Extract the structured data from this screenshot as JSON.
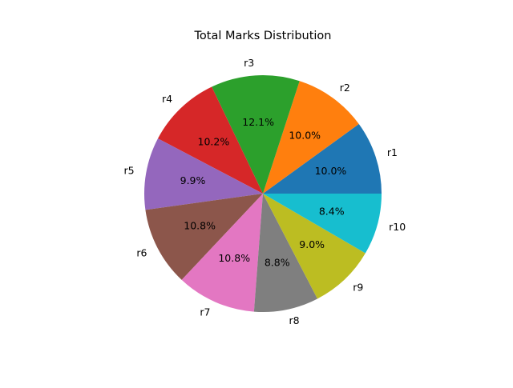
{
  "chart_data": {
    "type": "pie",
    "title": "Total Marks Distribution",
    "start_angle_deg": 0,
    "direction": "counterclockwise",
    "labels": [
      "r1",
      "r2",
      "r3",
      "r4",
      "r5",
      "r6",
      "r7",
      "r8",
      "r9",
      "r10"
    ],
    "values": [
      10.0,
      10.0,
      12.1,
      10.2,
      9.9,
      10.8,
      10.8,
      8.8,
      9.0,
      8.4
    ],
    "percent_labels": [
      "10.0%",
      "10.0%",
      "12.1%",
      "10.2%",
      "9.9%",
      "10.8%",
      "10.8%",
      "8.8%",
      "9.0%",
      "8.4%"
    ],
    "colors": [
      "#1f77b4",
      "#ff7f0e",
      "#2ca02c",
      "#d62728",
      "#9467bd",
      "#8c564b",
      "#e377c2",
      "#7f7f7f",
      "#bcbd22",
      "#17becf"
    ]
  }
}
